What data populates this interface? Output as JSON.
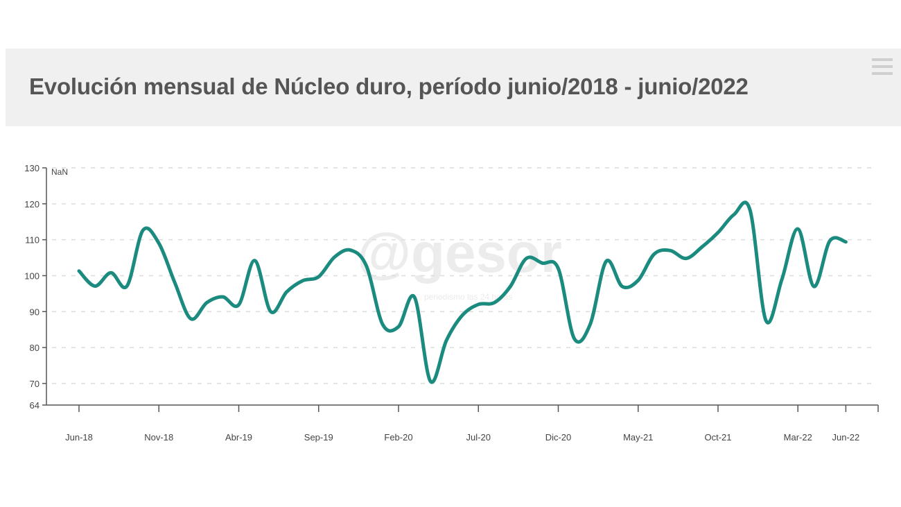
{
  "header": {
    "title": "Evolución mensual de Núcleo duro, período junio/2018 - junio/2022",
    "menu_icon": "hamburger-menu-icon"
  },
  "watermark": {
    "logo": "@gesor",
    "tagline": "periodismo las 24 horas"
  },
  "chart_data": {
    "type": "line",
    "title": "Evolución mensual de Núcleo duro, período junio/2018 - junio/2022",
    "xlabel": "",
    "ylabel": "",
    "y_axis_title": "NaN",
    "ylim": [
      64,
      130
    ],
    "yticks": [
      64,
      70,
      80,
      90,
      100,
      110,
      120,
      130
    ],
    "xlim": [
      "Abr-18",
      "Ago-22"
    ],
    "xtick_labels": [
      "Jun-18",
      "Nov-18",
      "Abr-19",
      "Sep-19",
      "Feb-20",
      "Jul-20",
      "Dic-20",
      "May-21",
      "Oct-21",
      "Mar-22",
      "Jun-22"
    ],
    "grid": true,
    "legend": "none",
    "color": "#1b8b7f",
    "x": [
      "Jun-18",
      "Jul-18",
      "Ago-18",
      "Sep-18",
      "Oct-18",
      "Nov-18",
      "Dic-18",
      "Ene-19",
      "Feb-19",
      "Mar-19",
      "Abr-19",
      "May-19",
      "Jun-19",
      "Jul-19",
      "Ago-19",
      "Sep-19",
      "Oct-19",
      "Nov-19",
      "Dic-19",
      "Ene-20",
      "Feb-20",
      "Mar-20",
      "Abr-20",
      "May-20",
      "Jun-20",
      "Jul-20",
      "Ago-20",
      "Sep-20",
      "Oct-20",
      "Nov-20",
      "Dic-20",
      "Ene-21",
      "Feb-21",
      "Mar-21",
      "Abr-21",
      "May-21",
      "Jun-21",
      "Jul-21",
      "Ago-21",
      "Sep-21",
      "Oct-21",
      "Nov-21",
      "Dic-21",
      "Ene-22",
      "Feb-22",
      "Mar-22",
      "Abr-22",
      "May-22",
      "Jun-22"
    ],
    "values": [
      101.3,
      97.1,
      100.8,
      97.1,
      112.6,
      109,
      98,
      88,
      92.5,
      94.1,
      91.9,
      104.2,
      90,
      95.5,
      98.6,
      99.7,
      105.2,
      107.1,
      102.6,
      86.5,
      85.8,
      94,
      70.6,
      82,
      89,
      92,
      92.5,
      97,
      104.8,
      103.5,
      102,
      82.5,
      86.5,
      104,
      97,
      98.7,
      106,
      107,
      104.8,
      108,
      112,
      117,
      118.3,
      87.5,
      99,
      113,
      97,
      109.7,
      109.4
    ]
  }
}
